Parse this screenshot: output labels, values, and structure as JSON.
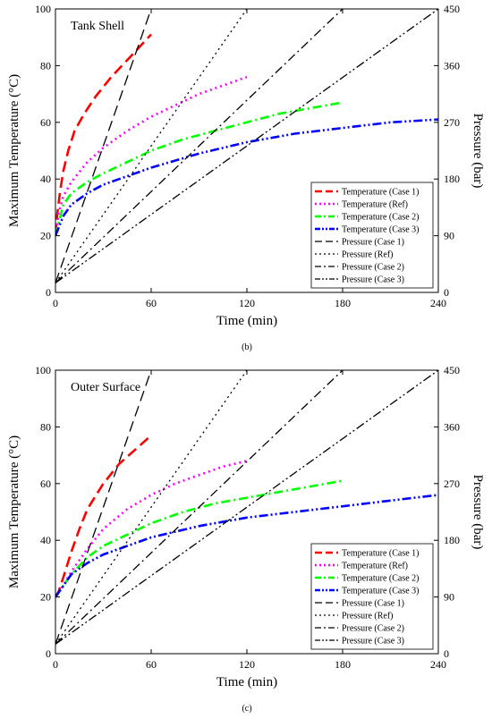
{
  "chart_data": [
    {
      "type": "line",
      "panel_label": "(b)",
      "title": "Tank Shell",
      "xlabel": "Time (min)",
      "ylabel": "Maximum Temperature (°C)",
      "y2label": "Pressure (bar)",
      "xlim": [
        0,
        240
      ],
      "ylim": [
        0,
        100
      ],
      "y2lim": [
        0,
        450
      ],
      "xticks": [
        0,
        60,
        120,
        180,
        240
      ],
      "yticks": [
        0,
        20,
        40,
        60,
        80,
        100
      ],
      "y2ticks": [
        0,
        90,
        180,
        270,
        360,
        450
      ],
      "grid": false,
      "legend_position": "bottom-right",
      "series": [
        {
          "name": "Temperature (Case 1)",
          "axis": "left",
          "color": "#ff0000",
          "dash": "long-dash",
          "x": [
            0,
            1,
            3,
            5,
            8,
            12,
            18,
            25,
            35,
            45,
            55,
            60
          ],
          "y": [
            20,
            27,
            36,
            43,
            50,
            57,
            63,
            69,
            76,
            82,
            88,
            91
          ]
        },
        {
          "name": "Temperature (Ref)",
          "axis": "left",
          "color": "#ff00ff",
          "dash": "dot",
          "x": [
            0,
            2,
            5,
            10,
            20,
            30,
            45,
            60,
            75,
            90,
            105,
            120
          ],
          "y": [
            20,
            28,
            34,
            39,
            46,
            51,
            57,
            62,
            66,
            70,
            73,
            76
          ]
        },
        {
          "name": "Temperature (Case 2)",
          "axis": "left",
          "color": "#00ff00",
          "dash": "dash-dot",
          "x": [
            0,
            5,
            10,
            20,
            30,
            45,
            60,
            80,
            100,
            120,
            140,
            160,
            180
          ],
          "y": [
            20,
            31,
            35,
            39,
            42,
            46,
            50,
            54,
            57,
            60,
            63,
            65,
            67
          ]
        },
        {
          "name": "Temperature (Case 3)",
          "axis": "left",
          "color": "#0000ff",
          "dash": "dash-dot-dot",
          "x": [
            0,
            5,
            10,
            20,
            30,
            45,
            60,
            90,
            120,
            150,
            180,
            210,
            240
          ],
          "y": [
            20,
            27,
            31,
            35,
            38,
            41,
            44,
            49,
            53,
            56,
            58,
            60,
            61
          ]
        },
        {
          "name": "Pressure (Case 1)",
          "axis": "right",
          "color": "#000000",
          "dash": "long-dash",
          "x": [
            0,
            60
          ],
          "y": [
            15,
            450
          ]
        },
        {
          "name": "Pressure (Ref)",
          "axis": "right",
          "color": "#000000",
          "dash": "dot",
          "x": [
            0,
            120
          ],
          "y": [
            15,
            450
          ]
        },
        {
          "name": "Pressure (Case 2)",
          "axis": "right",
          "color": "#000000",
          "dash": "dash-dot",
          "x": [
            0,
            180
          ],
          "y": [
            15,
            450
          ]
        },
        {
          "name": "Pressure (Case 3)",
          "axis": "right",
          "color": "#000000",
          "dash": "dash-dot-dot",
          "x": [
            0,
            240
          ],
          "y": [
            15,
            450
          ]
        }
      ]
    },
    {
      "type": "line",
      "panel_label": "(c)",
      "title": "Outer Surface",
      "xlabel": "Time (min)",
      "ylabel": "Maximum Temperature (°C)",
      "y2label": "Pressure (bar)",
      "xlim": [
        0,
        240
      ],
      "ylim": [
        0,
        100
      ],
      "y2lim": [
        0,
        450
      ],
      "xticks": [
        0,
        60,
        120,
        180,
        240
      ],
      "yticks": [
        0,
        20,
        40,
        60,
        80,
        100
      ],
      "y2ticks": [
        0,
        90,
        180,
        270,
        360,
        450
      ],
      "grid": false,
      "legend_position": "bottom-right",
      "series": [
        {
          "name": "Temperature (Case 1)",
          "axis": "left",
          "color": "#ff0000",
          "dash": "long-dash",
          "x": [
            0,
            2,
            5,
            10,
            15,
            20,
            30,
            40,
            50,
            60
          ],
          "y": [
            20,
            22,
            27,
            36,
            44,
            51,
            60,
            67,
            72,
            77
          ]
        },
        {
          "name": "Temperature (Ref)",
          "axis": "left",
          "color": "#ff00ff",
          "dash": "dot",
          "x": [
            0,
            5,
            10,
            20,
            30,
            45,
            60,
            75,
            90,
            105,
            120
          ],
          "y": [
            20,
            24,
            29,
            37,
            44,
            51,
            56,
            60,
            63,
            66,
            68
          ]
        },
        {
          "name": "Temperature (Case 2)",
          "axis": "left",
          "color": "#00ff00",
          "dash": "dash-dot",
          "x": [
            0,
            10,
            20,
            30,
            45,
            60,
            80,
            100,
            120,
            140,
            160,
            180
          ],
          "y": [
            20,
            28,
            34,
            38,
            42,
            46,
            50,
            53,
            55,
            57,
            59,
            61
          ]
        },
        {
          "name": "Temperature (Case 3)",
          "axis": "left",
          "color": "#0000ff",
          "dash": "dash-dot-dot",
          "x": [
            0,
            10,
            20,
            30,
            45,
            60,
            90,
            120,
            150,
            180,
            210,
            240
          ],
          "y": [
            20,
            28,
            32,
            35,
            38,
            41,
            45,
            48,
            50,
            52,
            54,
            56
          ]
        },
        {
          "name": "Pressure (Case 1)",
          "axis": "right",
          "color": "#000000",
          "dash": "long-dash",
          "x": [
            0,
            60
          ],
          "y": [
            15,
            450
          ]
        },
        {
          "name": "Pressure (Ref)",
          "axis": "right",
          "color": "#000000",
          "dash": "dot",
          "x": [
            0,
            120
          ],
          "y": [
            15,
            450
          ]
        },
        {
          "name": "Pressure (Case 2)",
          "axis": "right",
          "color": "#000000",
          "dash": "dash-dot",
          "x": [
            0,
            180
          ],
          "y": [
            15,
            450
          ]
        },
        {
          "name": "Pressure (Case 3)",
          "axis": "right",
          "color": "#000000",
          "dash": "dash-dot-dot",
          "x": [
            0,
            240
          ],
          "y": [
            15,
            450
          ]
        }
      ]
    }
  ]
}
